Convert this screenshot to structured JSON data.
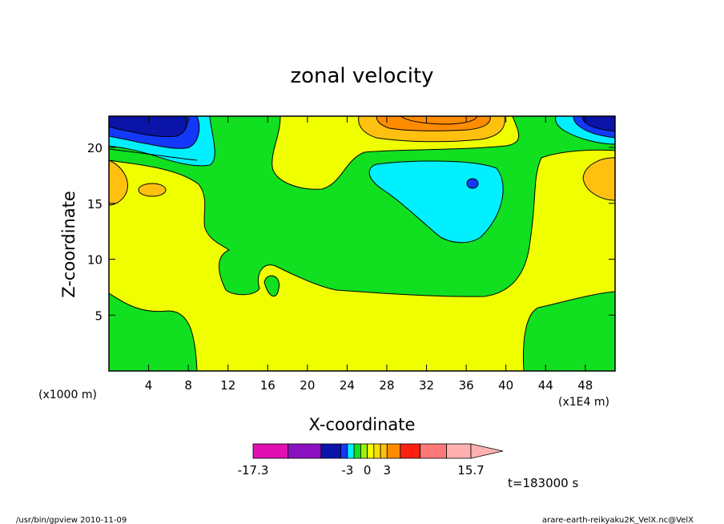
{
  "chart_data": {
    "type": "contour",
    "title": "zonal velocity",
    "xlabel": "X-coordinate",
    "ylabel": "Z-coordinate",
    "x_unit_left": "(x1000 m)",
    "x_unit_right": "(x1E4 m)",
    "xlim": [
      0,
      51
    ],
    "ylim": [
      0,
      22.8
    ],
    "x_ticks": [
      4,
      8,
      12,
      16,
      20,
      24,
      28,
      32,
      36,
      40,
      44,
      48
    ],
    "y_ticks": [
      5,
      10,
      15,
      20
    ],
    "grid": false,
    "colorbar": {
      "levels": [
        -17.3,
        -12,
        -7,
        -4,
        -3,
        -2,
        -1,
        0,
        1,
        2,
        3,
        5,
        8,
        12,
        15.7
      ],
      "labels": [
        "-17.3",
        "-3",
        "0",
        "3",
        "15.7"
      ],
      "colors": [
        "#e010b0",
        "#8a10c0",
        "#0a14a8",
        "#1238f8",
        "#00f0ff",
        "#10e020",
        "#a0f010",
        "#f0ff00",
        "#f8e000",
        "#ffc010",
        "#ff8c00",
        "#ff2010",
        "#ff7878",
        "#ffb0b0"
      ]
    },
    "annotations": {
      "time": "t=183000 s",
      "footer_left": "/usr/bin/gpview  2010-11-09",
      "footer_right": "arare-earth-reikyaku2K_VelX.nc@VelX"
    }
  }
}
